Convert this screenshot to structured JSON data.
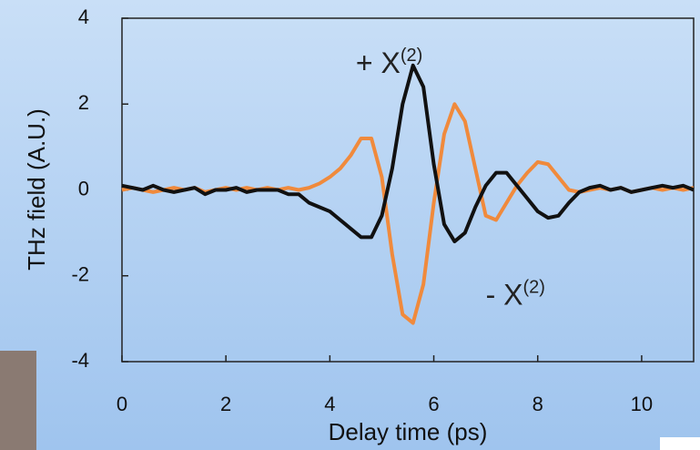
{
  "chart_data": {
    "type": "line",
    "x_label": "Delay time (ps)",
    "y_label": "THz field (A.U.)",
    "xlim": [
      0,
      11
    ],
    "ylim": [
      -4,
      4
    ],
    "xticks": [
      0,
      2,
      4,
      6,
      8,
      10
    ],
    "yticks": [
      -4,
      -2,
      0,
      2,
      4
    ],
    "annotations": [
      {
        "text": "+ X",
        "sup": "(2)",
        "x": 4.5,
        "y": 2.9
      },
      {
        "text": "- X",
        "sup": "(2)",
        "x": 7.0,
        "y": -2.5
      }
    ],
    "x": [
      0,
      0.2,
      0.4,
      0.6,
      0.8,
      1,
      1.2,
      1.4,
      1.6,
      1.8,
      2,
      2.2,
      2.4,
      2.6,
      2.8,
      3,
      3.2,
      3.4,
      3.6,
      3.8,
      4,
      4.2,
      4.4,
      4.6,
      4.8,
      5,
      5.2,
      5.4,
      5.6,
      5.8,
      6,
      6.2,
      6.4,
      6.6,
      6.8,
      7,
      7.2,
      7.4,
      7.6,
      7.8,
      8,
      8.2,
      8.4,
      8.6,
      8.8,
      9,
      9.2,
      9.4,
      9.6,
      9.8,
      10,
      10.2,
      10.4,
      10.6,
      10.8,
      11
    ],
    "series": [
      {
        "color": "#f08a3c",
        "values": [
          0,
          0.05,
          0,
          -0.05,
          0,
          0.05,
          0,
          0.05,
          -0.05,
          0,
          0.05,
          0,
          0.05,
          0,
          0.05,
          0,
          0.05,
          0,
          0.05,
          0.15,
          0.3,
          0.5,
          0.8,
          1.2,
          1.2,
          0.3,
          -1.5,
          -2.9,
          -3.1,
          -2.2,
          -0.3,
          1.3,
          2.0,
          1.6,
          0.5,
          -0.6,
          -0.7,
          -0.3,
          0.1,
          0.4,
          0.65,
          0.6,
          0.3,
          0,
          -0.05,
          0,
          0.05,
          0,
          0.05,
          -0.05,
          0,
          0.05,
          0,
          0.05,
          0,
          0.05
        ]
      },
      {
        "color": "#111111",
        "values": [
          0.1,
          0.05,
          0,
          0.1,
          0,
          -0.05,
          0,
          0.05,
          -0.1,
          0,
          0,
          0.05,
          -0.05,
          0,
          0,
          0,
          -0.1,
          -0.1,
          -0.3,
          -0.4,
          -0.5,
          -0.7,
          -0.9,
          -1.1,
          -1.1,
          -0.6,
          0.5,
          2.0,
          2.9,
          2.4,
          0.6,
          -0.8,
          -1.2,
          -1.0,
          -0.4,
          0.1,
          0.4,
          0.4,
          0.1,
          -0.2,
          -0.5,
          -0.65,
          -0.6,
          -0.3,
          -0.05,
          0.05,
          0.1,
          0,
          0.05,
          -0.05,
          0,
          0.05,
          0.1,
          0.05,
          0.1,
          0
        ]
      }
    ]
  }
}
